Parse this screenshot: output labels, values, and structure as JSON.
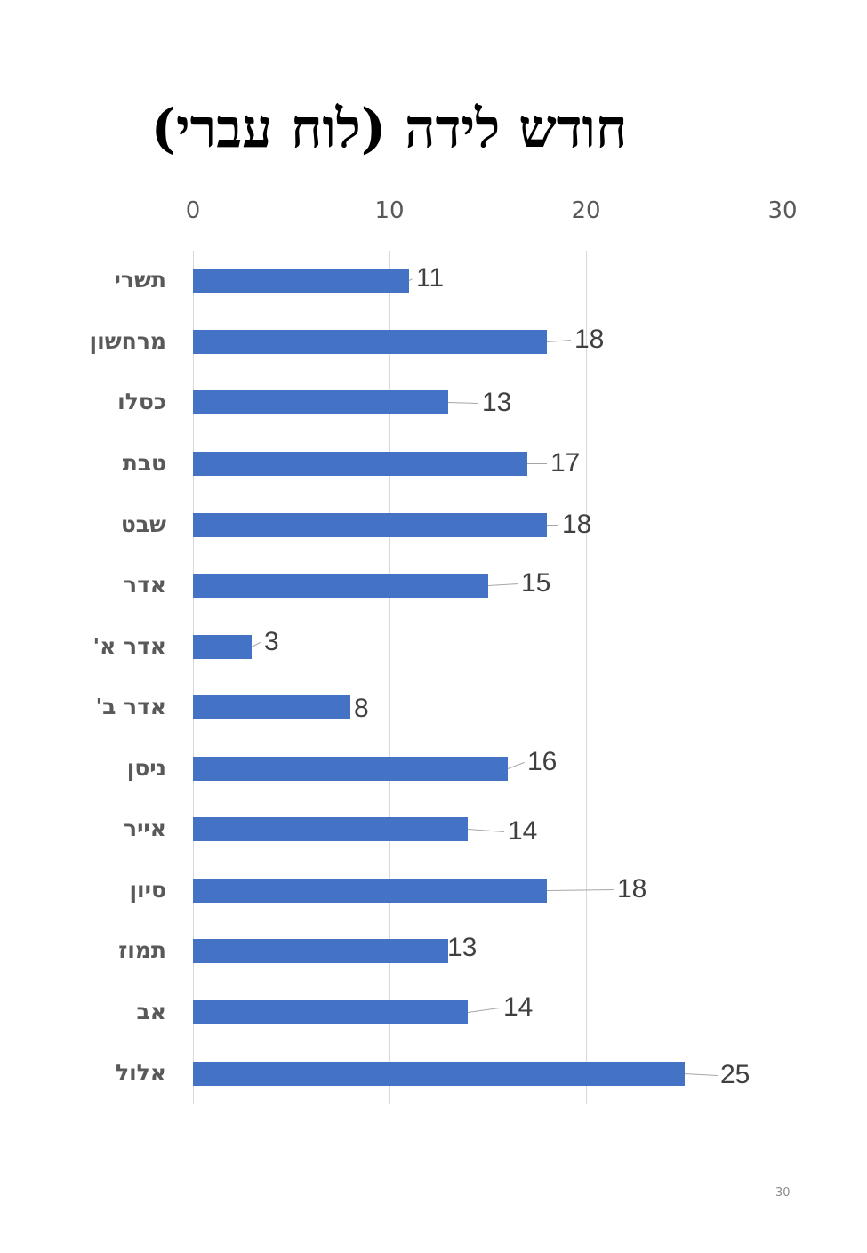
{
  "title": "חודש לידה (לוח עברי)",
  "axis": {
    "ticks": [
      "0",
      "10",
      "20",
      "30"
    ],
    "min": 0,
    "max": 30
  },
  "bar_color": "#4472c4",
  "page_number": "30",
  "chart_data": {
    "type": "bar",
    "orientation": "horizontal",
    "title": "חודש לידה (לוח עברי)",
    "xlabel": "",
    "ylabel": "",
    "xlim": [
      0,
      30
    ],
    "x_ticks": [
      0,
      10,
      20,
      30
    ],
    "x_axis_position": "top",
    "grid": true,
    "legend": null,
    "categories": [
      "תשרי",
      "מרחשון",
      "כסלו",
      "טבת",
      "שבט",
      "אדר",
      "אדר א'",
      "אדר ב'",
      "ניסן",
      "אייר",
      "סיון",
      "תמוז",
      "אב",
      "אלול"
    ],
    "values": [
      11,
      18,
      13,
      17,
      18,
      15,
      3,
      8,
      16,
      14,
      18,
      13,
      14,
      25
    ],
    "data_labels": true
  },
  "rows": [
    {
      "label": "תשרי",
      "value": "11"
    },
    {
      "label": "מרחשון",
      "value": "18"
    },
    {
      "label": "כסלו",
      "value": "13"
    },
    {
      "label": "טבת",
      "value": "17"
    },
    {
      "label": "שבט",
      "value": "18"
    },
    {
      "label": "אדר",
      "value": "15"
    },
    {
      "label": "אדר א'",
      "value": "3"
    },
    {
      "label": "אדר ב'",
      "value": "8"
    },
    {
      "label": "ניסן",
      "value": "16"
    },
    {
      "label": "אייר",
      "value": "14"
    },
    {
      "label": "סיון",
      "value": "18"
    },
    {
      "label": "תמוז",
      "value": "13"
    },
    {
      "label": "אב",
      "value": "14"
    },
    {
      "label": "אלול",
      "value": "25"
    }
  ]
}
